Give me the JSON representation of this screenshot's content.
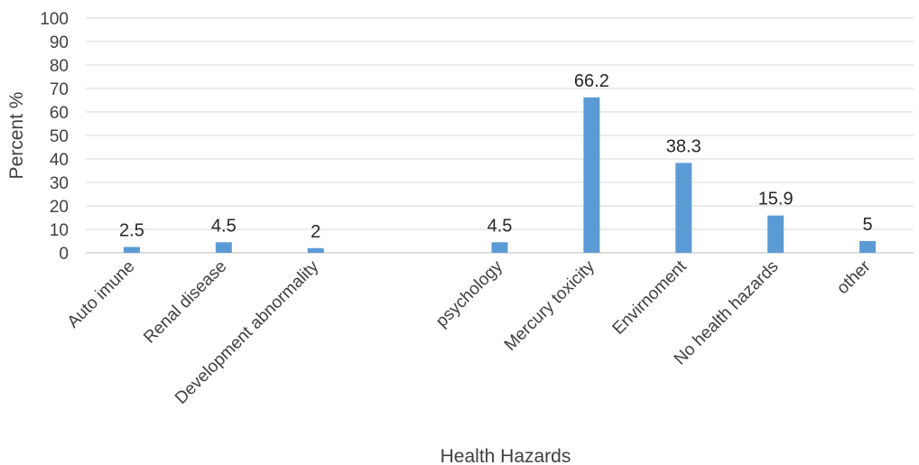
{
  "chart_data": {
    "type": "bar",
    "categories": [
      "Auto imune",
      "Renal disease",
      "Development abnormality",
      "",
      "psychology",
      "Mercury toxicity",
      "Envirnoment",
      "No health hazards",
      "other"
    ],
    "values": [
      2.5,
      4.5,
      2,
      null,
      4.5,
      66.2,
      38.3,
      15.9,
      5
    ],
    "data_labels": [
      "2.5",
      "4.5",
      "2",
      "",
      "4.5",
      "66.2",
      "38.3",
      "15.9",
      "5"
    ],
    "xlabel": "Health Hazards",
    "ylabel": "Percent %",
    "ylim": [
      0,
      100
    ],
    "yticks": [
      0,
      10,
      20,
      30,
      40,
      50,
      60,
      70,
      80,
      90,
      100
    ],
    "grid": true,
    "legend": "none",
    "bar_color": "#5b9bd5"
  }
}
